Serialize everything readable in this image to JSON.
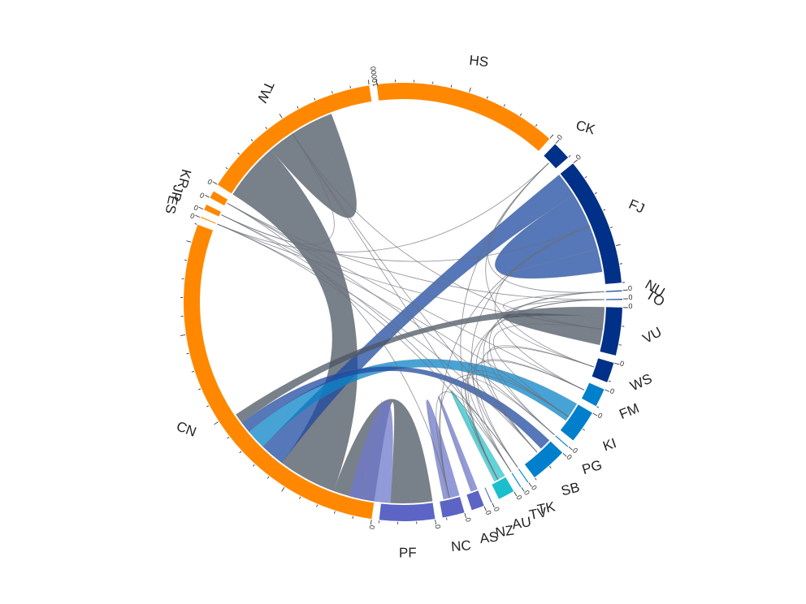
{
  "chart_data": {
    "type": "chord",
    "title": "",
    "sectors": [
      {
        "name": "HS",
        "value": 10000,
        "color": "#ff8800",
        "start_tick": "10000",
        "ticks": [
          "10000"
        ]
      },
      {
        "name": "CK",
        "value": 1000,
        "color": "#003087",
        "start_tick": "0",
        "ticks": [
          "0"
        ]
      },
      {
        "name": "FJ",
        "value": 7000,
        "color": "#003087",
        "start_tick": "0",
        "ticks": [
          "0",
          "5000"
        ]
      },
      {
        "name": "NU",
        "value": 50,
        "color": "#003087",
        "start_tick": "0",
        "ticks": [
          "0"
        ]
      },
      {
        "name": "TO",
        "value": 50,
        "color": "#003087",
        "start_tick": "0",
        "ticks": [
          "0"
        ]
      },
      {
        "name": "VU",
        "value": 2600,
        "color": "#003087",
        "start_tick": "0",
        "ticks": [
          "0"
        ]
      },
      {
        "name": "WS",
        "value": 1100,
        "color": "#003087",
        "start_tick": "0",
        "ticks": [
          "0"
        ]
      },
      {
        "name": "FM",
        "value": 1000,
        "color": "#0080cc",
        "start_tick": "0",
        "ticks": [
          "0"
        ]
      },
      {
        "name": "KI",
        "value": 1800,
        "color": "#0080cc",
        "start_tick": "0",
        "ticks": [
          "0"
        ]
      },
      {
        "name": "PG",
        "value": 50,
        "color": "#0080cc",
        "start_tick": "0",
        "ticks": [
          "0"
        ]
      },
      {
        "name": "SB",
        "value": 2000,
        "color": "#0080cc",
        "start_tick": "0",
        "ticks": [
          "0"
        ]
      },
      {
        "name": "TK",
        "value": 50,
        "color": "#0080cc",
        "start_tick": "0",
        "ticks": [
          "0"
        ]
      },
      {
        "name": "TV",
        "value": 50,
        "color": "#0080cc",
        "start_tick": "0",
        "ticks": [
          "0"
        ]
      },
      {
        "name": "AU",
        "value": 900,
        "color": "#1bbfcc",
        "start_tick": "0",
        "ticks": [
          "0"
        ]
      },
      {
        "name": "NZ",
        "value": 50,
        "color": "#5c65c5",
        "start_tick": "0",
        "ticks": [
          "0"
        ]
      },
      {
        "name": "AS",
        "value": 700,
        "color": "#5c65c5",
        "start_tick": "0",
        "ticks": [
          "0"
        ]
      },
      {
        "name": "NC",
        "value": 1200,
        "color": "#5c65c5",
        "start_tick": "0",
        "ticks": [
          "0"
        ]
      },
      {
        "name": "PF",
        "value": 3000,
        "color": "#5c65c5",
        "start_tick": "0",
        "ticks": [
          "0"
        ]
      },
      {
        "name": "CN",
        "value": 21000,
        "color": "#ff8800",
        "start_tick": "0",
        "ticks": [
          "5000",
          "10000",
          "15000",
          "20000"
        ]
      },
      {
        "name": "ES",
        "value": 50,
        "color": "#ff8800",
        "start_tick": "0",
        "ticks": [
          "0"
        ]
      },
      {
        "name": "JP",
        "value": 300,
        "color": "#ff8800",
        "start_tick": "0",
        "ticks": [
          "0"
        ]
      },
      {
        "name": "KR",
        "value": 400,
        "color": "#ff8800",
        "start_tick": "0",
        "ticks": [
          "0"
        ]
      },
      {
        "name": "TW",
        "value": 10000,
        "color": "#ff8800",
        "start_tick": "0",
        "ticks": [
          "5000"
        ]
      }
    ],
    "links": [
      {
        "from": "CN",
        "to": "PF",
        "value": 2500,
        "color": "#4b5563"
      },
      {
        "from": "CN",
        "to": "TW",
        "value": 3500,
        "color": "#4b5563"
      },
      {
        "from": "CN",
        "to": "FJ",
        "value": 1500,
        "color": "#1e4aa0"
      },
      {
        "from": "CN",
        "to": "KI",
        "value": 1200,
        "color": "#0a84c8"
      },
      {
        "from": "CN",
        "to": "SB",
        "value": 700,
        "color": "#1e4aa0"
      },
      {
        "from": "CN",
        "to": "VU",
        "value": 600,
        "color": "#4b5563"
      },
      {
        "from": "PF",
        "to": "PF",
        "value": 1800,
        "color": "#6f78cc"
      },
      {
        "from": "NC",
        "to": "NC",
        "value": 700,
        "color": "#6f78cc"
      },
      {
        "from": "AS",
        "to": "AS",
        "value": 300,
        "color": "#6f78cc"
      },
      {
        "from": "AU",
        "to": "AU",
        "value": 500,
        "color": "#2cc4cc"
      },
      {
        "from": "FJ",
        "to": "FJ",
        "value": 3500,
        "color": "#1e4aa0"
      },
      {
        "from": "VU",
        "to": "VU",
        "value": 1200,
        "color": "#4b5563"
      },
      {
        "from": "TW",
        "to": "TW",
        "value": 3000,
        "color": "#4b5563"
      }
    ]
  }
}
